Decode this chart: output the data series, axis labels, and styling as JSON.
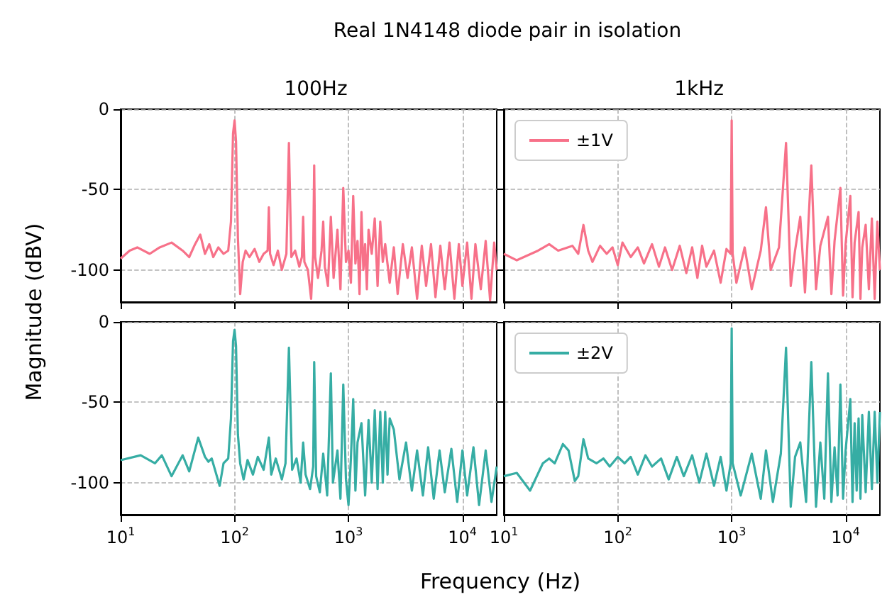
{
  "chart_data": [
    {
      "type": "line",
      "title": "Real 1N4148 diode pair in isolation",
      "subtitle": "100Hz",
      "log": "x",
      "xlim": [
        10,
        20000
      ],
      "ylim": [
        -120,
        0
      ],
      "xticks": [
        10,
        100,
        1000,
        10000
      ],
      "yticks": [
        0,
        -50,
        -100
      ],
      "grid": true,
      "tick_labels": "y",
      "x": [
        10,
        12,
        14,
        18,
        22,
        28,
        35,
        40,
        45,
        50,
        55,
        60,
        65,
        72,
        80,
        88,
        93,
        97,
        100,
        103,
        107,
        112,
        118,
        125,
        135,
        150,
        165,
        180,
        195,
        200,
        205,
        220,
        240,
        260,
        285,
        300,
        315,
        340,
        370,
        390,
        400,
        410,
        440,
        470,
        490,
        500,
        510,
        540,
        580,
        600,
        620,
        660,
        700,
        740,
        800,
        850,
        900,
        950,
        1000,
        1050,
        1100,
        1150,
        1200,
        1250,
        1300,
        1350,
        1400,
        1450,
        1500,
        1600,
        1700,
        1800,
        1900,
        2000,
        2100,
        2300,
        2500,
        2700,
        3000,
        3300,
        3600,
        4000,
        4400,
        4800,
        5300,
        5800,
        6400,
        7000,
        7700,
        8500,
        9300,
        10000,
        11000,
        12000,
        13000,
        14500,
        16000,
        17500,
        19000,
        20000
      ],
      "series": [
        {
          "color": "#f77189",
          "values": [
            -93,
            -88,
            -86,
            -90,
            -86,
            -83,
            -88,
            -92,
            -84,
            -78,
            -90,
            -84,
            -92,
            -86,
            -90,
            -88,
            -70,
            -15,
            -7,
            -20,
            -80,
            -115,
            -95,
            -88,
            -92,
            -87,
            -95,
            -90,
            -88,
            -61,
            -90,
            -97,
            -88,
            -100,
            -90,
            -21,
            -92,
            -88,
            -98,
            -92,
            -67,
            -95,
            -100,
            -118,
            -90,
            -35,
            -92,
            -105,
            -88,
            -70,
            -98,
            -110,
            -67,
            -105,
            -75,
            -112,
            -49,
            -95,
            -88,
            -108,
            -54,
            -96,
            -82,
            -115,
            -64,
            -100,
            -84,
            -112,
            -75,
            -90,
            -68,
            -110,
            -70,
            -95,
            -84,
            -108,
            -86,
            -115,
            -84,
            -105,
            -86,
            -118,
            -85,
            -110,
            -84,
            -117,
            -85,
            -112,
            -83,
            -118,
            -84,
            -110,
            -83,
            -118,
            -84,
            -112,
            -82,
            -119,
            -83,
            -100
          ]
        }
      ]
    },
    {
      "type": "line",
      "subtitle": "1kHz",
      "log": "x",
      "xlim": [
        10,
        20000
      ],
      "ylim": [
        -120,
        0
      ],
      "xticks": [
        10,
        100,
        1000,
        10000
      ],
      "yticks": [
        0,
        -50,
        -100
      ],
      "grid": true,
      "tick_labels": false,
      "legend": "top left",
      "x": [
        10,
        13,
        20,
        25,
        30,
        40,
        45,
        50,
        55,
        60,
        70,
        80,
        90,
        100,
        110,
        130,
        150,
        170,
        200,
        230,
        260,
        300,
        350,
        400,
        450,
        500,
        550,
        600,
        700,
        800,
        900,
        980,
        1000,
        1020,
        1100,
        1300,
        1500,
        1800,
        2000,
        2200,
        2600,
        3000,
        3300,
        3600,
        4000,
        4400,
        5000,
        5500,
        6000,
        7000,
        7500,
        8000,
        9000,
        9500,
        10000,
        11000,
        11500,
        12000,
        13000,
        13500,
        14000,
        15000,
        16000,
        17000,
        18000,
        19000,
        20000
      ],
      "series": [
        {
          "name": "±1V",
          "color": "#f77189",
          "values": [
            -90,
            -94,
            -88,
            -84,
            -88,
            -85,
            -90,
            -72,
            -88,
            -95,
            -85,
            -90,
            -86,
            -97,
            -83,
            -92,
            -86,
            -96,
            -84,
            -98,
            -86,
            -100,
            -85,
            -102,
            -86,
            -105,
            -85,
            -98,
            -88,
            -108,
            -87,
            -90,
            -7,
            -90,
            -108,
            -86,
            -112,
            -88,
            -61,
            -100,
            -86,
            -21,
            -110,
            -88,
            -67,
            -114,
            -35,
            -112,
            -85,
            -67,
            -115,
            -82,
            -49,
            -116,
            -84,
            -54,
            -117,
            -83,
            -64,
            -118,
            -86,
            -72,
            -112,
            -68,
            -118,
            -70,
            -100
          ]
        }
      ]
    },
    {
      "type": "line",
      "xlabel": "Frequency (Hz)",
      "ylabel": "Magnitude (dBV)",
      "log": "x",
      "xlim": [
        10,
        20000
      ],
      "ylim": [
        -120,
        0
      ],
      "xticks": [
        {
          "value": 10,
          "label": "10$^{1}$"
        },
        {
          "value": 100,
          "label": "10$^{2}$"
        },
        {
          "value": 1000,
          "label": "10$^{3}$"
        },
        {
          "value": 10000,
          "label": "10$^{4}$"
        }
      ],
      "yticks": [
        0,
        -50,
        -100
      ],
      "grid": true,
      "x": [
        10,
        15,
        20,
        23,
        28,
        35,
        40,
        48,
        55,
        59,
        63,
        74,
        80,
        88,
        93,
        97,
        100,
        103,
        107,
        112,
        120,
        130,
        145,
        160,
        180,
        200,
        210,
        230,
        260,
        280,
        300,
        320,
        350,
        380,
        400,
        420,
        460,
        490,
        500,
        520,
        560,
        600,
        650,
        700,
        730,
        800,
        850,
        900,
        950,
        1000,
        1050,
        1100,
        1150,
        1200,
        1300,
        1400,
        1500,
        1600,
        1700,
        1800,
        1900,
        2000,
        2100,
        2200,
        2300,
        2500,
        2800,
        3200,
        3600,
        4000,
        4500,
        5000,
        5600,
        6300,
        7000,
        8000,
        9000,
        10000,
        11000,
        12500,
        14000,
        16000,
        18000,
        20000
      ],
      "series": [
        {
          "color": "#36ada4",
          "values": [
            -86,
            -83,
            -88,
            -83,
            -96,
            -83,
            -93,
            -72,
            -84,
            -87,
            -85,
            -102,
            -88,
            -85,
            -60,
            -12,
            -5,
            -15,
            -70,
            -88,
            -98,
            -86,
            -95,
            -84,
            -92,
            -72,
            -95,
            -85,
            -98,
            -88,
            -16,
            -92,
            -85,
            -100,
            -75,
            -95,
            -104,
            -90,
            -25,
            -96,
            -106,
            -82,
            -108,
            -32,
            -100,
            -80,
            -110,
            -39,
            -98,
            -114,
            -85,
            -48,
            -105,
            -75,
            -63,
            -108,
            -61,
            -100,
            -55,
            -104,
            -56,
            -100,
            -56,
            -95,
            -60,
            -67,
            -98,
            -75,
            -105,
            -80,
            -108,
            -78,
            -110,
            -80,
            -106,
            -79,
            -112,
            -80,
            -108,
            -78,
            -114,
            -80,
            -112,
            -90
          ]
        }
      ]
    },
    {
      "type": "line",
      "log": "x",
      "xlim": [
        10,
        20000
      ],
      "ylim": [
        -120,
        0
      ],
      "xticks": [
        {
          "value": 10,
          "label": "10$^{1}$"
        },
        {
          "value": 100,
          "label": "10$^{2}$"
        },
        {
          "value": 1000,
          "label": "10$^{3}$"
        },
        {
          "value": 10000,
          "label": "10$^{4}$"
        }
      ],
      "yticks": [
        0,
        -50,
        -100
      ],
      "grid": true,
      "tick_labels": "x",
      "legend": "top left",
      "x": [
        10,
        13,
        17,
        22,
        25,
        28,
        33,
        37,
        42,
        45,
        50,
        55,
        65,
        75,
        85,
        100,
        115,
        130,
        150,
        175,
        200,
        240,
        280,
        330,
        380,
        450,
        520,
        600,
        700,
        800,
        900,
        980,
        1000,
        1020,
        1200,
        1500,
        1800,
        2000,
        2300,
        2700,
        3000,
        3300,
        3600,
        4000,
        4500,
        5000,
        5500,
        6000,
        6500,
        7000,
        7500,
        8000,
        8500,
        9000,
        9500,
        10000,
        11000,
        11500,
        12000,
        12500,
        13000,
        13500,
        14000,
        15000,
        16000,
        17000,
        18000,
        19000,
        20000
      ],
      "series": [
        {
          "name": "±2V",
          "color": "#36ada4",
          "values": [
            -96,
            -94,
            -105,
            -88,
            -85,
            -88,
            -76,
            -80,
            -99,
            -96,
            -73,
            -85,
            -88,
            -85,
            -90,
            -84,
            -88,
            -84,
            -95,
            -83,
            -90,
            -85,
            -98,
            -84,
            -96,
            -83,
            -100,
            -82,
            -102,
            -84,
            -105,
            -88,
            -4,
            -88,
            -108,
            -82,
            -110,
            -80,
            -112,
            -82,
            -16,
            -115,
            -84,
            -75,
            -112,
            -25,
            -115,
            -75,
            -110,
            -32,
            -112,
            -78,
            -108,
            -39,
            -110,
            -80,
            -48,
            -112,
            -63,
            -105,
            -60,
            -110,
            -58,
            -106,
            -56,
            -104,
            -56,
            -100,
            -56
          ]
        }
      ]
    }
  ]
}
